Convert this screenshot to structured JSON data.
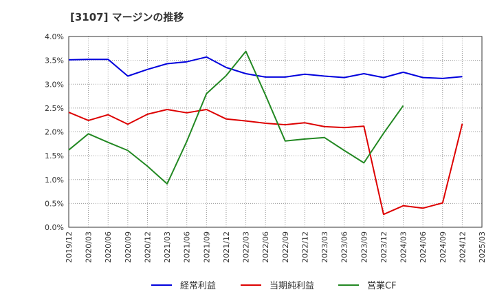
{
  "chart_data": {
    "type": "line",
    "title": "[3107]  マージンの推移",
    "xlabel": "",
    "ylabel": "",
    "ylim": [
      0,
      4.0
    ],
    "grid": true,
    "legend_position": "bottom",
    "x": [
      "2019/12",
      "2020/03",
      "2020/06",
      "2020/09",
      "2020/12",
      "2021/03",
      "2021/06",
      "2021/09",
      "2021/12",
      "2022/03",
      "2022/06",
      "2022/09",
      "2022/12",
      "2023/03",
      "2023/06",
      "2023/09",
      "2023/12",
      "2024/03",
      "2024/06",
      "2024/09",
      "2024/12",
      "2025/03"
    ],
    "y_ticks": [
      "0.0%",
      "0.5%",
      "1.0%",
      "1.5%",
      "2.0%",
      "2.5%",
      "3.0%",
      "3.5%",
      "4.0%"
    ],
    "series": [
      {
        "name": "経常利益",
        "color": "#0000dd",
        "values": [
          3.51,
          3.52,
          3.52,
          3.17,
          3.31,
          3.43,
          3.47,
          3.57,
          3.35,
          3.22,
          3.15,
          3.15,
          3.21,
          3.17,
          3.14,
          3.22,
          3.14,
          3.25,
          3.14,
          3.12,
          3.16,
          null
        ]
      },
      {
        "name": "当期純利益",
        "color": "#dd0000",
        "values": [
          2.41,
          2.24,
          2.36,
          2.16,
          2.37,
          2.47,
          2.4,
          2.47,
          2.27,
          2.23,
          2.18,
          2.15,
          2.19,
          2.11,
          2.09,
          2.12,
          0.27,
          0.45,
          0.4,
          0.51,
          2.17,
          null
        ]
      },
      {
        "name": "営業CF",
        "color": "#228822",
        "values": [
          1.62,
          1.96,
          1.78,
          1.61,
          1.28,
          0.91,
          1.8,
          2.8,
          3.18,
          3.69,
          2.77,
          1.81,
          1.85,
          1.88,
          1.61,
          1.35,
          1.97,
          2.55,
          null,
          null,
          null,
          null
        ]
      }
    ]
  }
}
